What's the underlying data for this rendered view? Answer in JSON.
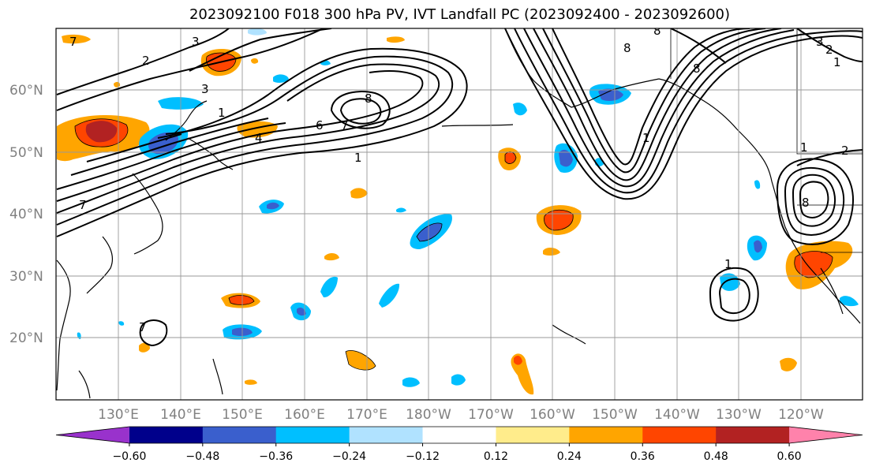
{
  "title": "2023092100 F018 300 hPa PV, IVT Landfall PC (2023092400 - 2023092600)",
  "lat_labels": [
    "60°N",
    "50°N",
    "40°N",
    "30°N",
    "20°N"
  ],
  "lon_labels": [
    "130°E",
    "140°E",
    "150°E",
    "160°E",
    "170°E",
    "180°W",
    "170°W",
    "160°W",
    "150°W",
    "140°W",
    "130°W",
    "120°W"
  ],
  "colorbar": {
    "colors": [
      "#9932CC",
      "#00008B",
      "#3A5FCD",
      "#00BFFF",
      "#B0E2FF",
      "#FFFFFF",
      "#FFEC8B",
      "#FFA500",
      "#FF4500",
      "#B22222",
      "#FF82AB"
    ],
    "tick_labels": [
      "−0.60",
      "−0.48",
      "−0.36",
      "−0.24",
      "−0.12",
      "0.12",
      "0.24",
      "0.36",
      "0.48",
      "0.60"
    ]
  },
  "contour_labels": [
    "7",
    "3",
    "2",
    "7",
    "3",
    "1",
    "4",
    "6",
    "7",
    "8",
    "1",
    "8",
    "8",
    "8",
    "3",
    "2",
    "1",
    "1",
    "2",
    "8",
    "1",
    "7",
    "1"
  ]
}
